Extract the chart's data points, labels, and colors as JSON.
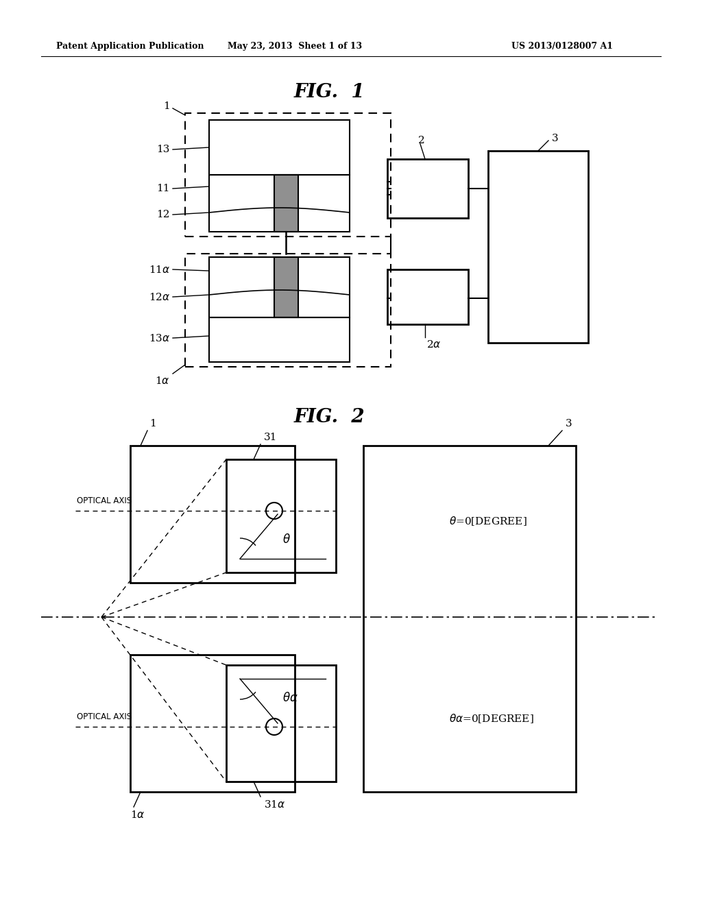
{
  "bg_color": "#ffffff",
  "header_left": "Patent Application Publication",
  "header_mid": "May 23, 2013  Sheet 1 of 13",
  "header_right": "US 2013/0128007 A1"
}
